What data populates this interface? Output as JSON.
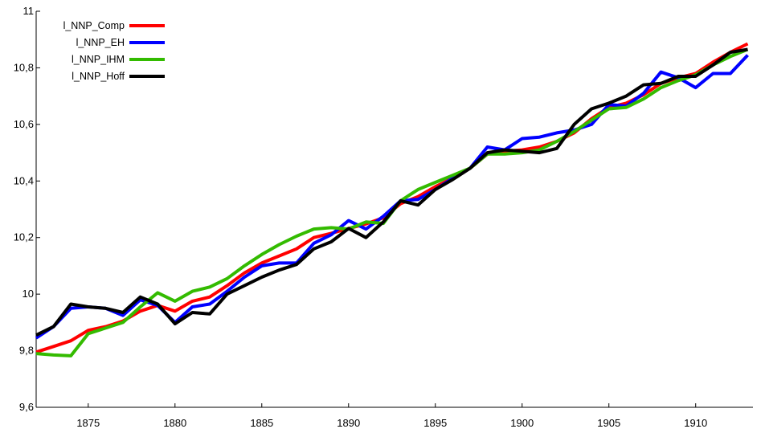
{
  "chart_data": {
    "type": "line",
    "title": "",
    "xlabel": "",
    "ylabel": "",
    "xlim": [
      1872,
      1913.3
    ],
    "ylim": [
      9.6,
      11
    ],
    "x_ticks": [
      1875,
      1880,
      1885,
      1890,
      1895,
      1900,
      1905,
      1910
    ],
    "x_tick_labels": [
      "1875",
      "1880",
      "1885",
      "1890",
      "1895",
      "1900",
      "1905",
      "1910"
    ],
    "y_ticks": [
      9.6,
      9.8,
      10,
      10.2,
      10.4,
      10.6,
      10.8,
      11
    ],
    "y_tick_labels": [
      "9,6",
      "9,8",
      "10",
      "10,2",
      "10,4",
      "10,6",
      "10,8",
      "11"
    ],
    "grid": false,
    "legend_position": "top-left",
    "x": [
      1872,
      1873,
      1874,
      1875,
      1876,
      1877,
      1878,
      1879,
      1880,
      1881,
      1882,
      1883,
      1884,
      1885,
      1886,
      1887,
      1888,
      1889,
      1890,
      1891,
      1892,
      1893,
      1894,
      1895,
      1896,
      1897,
      1898,
      1899,
      1900,
      1901,
      1902,
      1903,
      1904,
      1905,
      1906,
      1907,
      1908,
      1909,
      1910,
      1911,
      1912,
      1913
    ],
    "series": [
      {
        "name": "l_NNP_Comp",
        "color": "#ff0000",
        "values": [
          9.795,
          9.815,
          9.835,
          9.872,
          9.885,
          9.905,
          9.94,
          9.96,
          9.94,
          9.975,
          9.99,
          10.03,
          10.075,
          10.11,
          10.135,
          10.16,
          10.2,
          10.215,
          10.232,
          10.248,
          10.27,
          10.32,
          10.345,
          10.38,
          10.41,
          10.445,
          10.495,
          10.505,
          10.51,
          10.52,
          10.54,
          10.57,
          10.62,
          10.66,
          10.675,
          10.705,
          10.745,
          10.765,
          10.78,
          10.82,
          10.855,
          10.885
        ]
      },
      {
        "name": "l_NNP_EH",
        "color": "#0000ff",
        "values": [
          9.845,
          9.885,
          9.95,
          9.955,
          9.95,
          9.925,
          9.98,
          9.96,
          9.9,
          9.955,
          9.965,
          10.01,
          10.06,
          10.1,
          10.11,
          10.11,
          10.18,
          10.21,
          10.26,
          10.23,
          10.275,
          10.33,
          10.335,
          10.37,
          10.41,
          10.445,
          10.52,
          10.51,
          10.55,
          10.555,
          10.57,
          10.58,
          10.6,
          10.67,
          10.665,
          10.71,
          10.785,
          10.765,
          10.73,
          10.78,
          10.78,
          10.845
        ]
      },
      {
        "name": "l_NNP_IHM",
        "color": "#33bb00",
        "values": [
          9.79,
          9.785,
          9.782,
          9.86,
          9.88,
          9.9,
          9.955,
          10.005,
          9.975,
          10.01,
          10.025,
          10.055,
          10.1,
          10.14,
          10.175,
          10.205,
          10.23,
          10.235,
          10.23,
          10.255,
          10.25,
          10.33,
          10.37,
          10.395,
          10.42,
          10.445,
          10.495,
          10.495,
          10.5,
          10.51,
          10.54,
          10.575,
          10.615,
          10.655,
          10.66,
          10.69,
          10.73,
          10.755,
          10.775,
          10.81,
          10.84,
          10.865
        ]
      },
      {
        "name": "l_NNP_Hoff",
        "color": "#000000",
        "values": [
          9.855,
          9.885,
          9.965,
          9.955,
          9.95,
          9.935,
          9.99,
          9.965,
          9.895,
          9.935,
          9.93,
          10,
          10.03,
          10.06,
          10.085,
          10.105,
          10.16,
          10.185,
          10.232,
          10.2,
          10.255,
          10.33,
          10.315,
          10.37,
          10.405,
          10.445,
          10.5,
          10.51,
          10.505,
          10.5,
          10.515,
          10.6,
          10.655,
          10.675,
          10.7,
          10.74,
          10.745,
          10.77,
          10.77,
          10.81,
          10.855,
          10.865
        ]
      }
    ]
  }
}
